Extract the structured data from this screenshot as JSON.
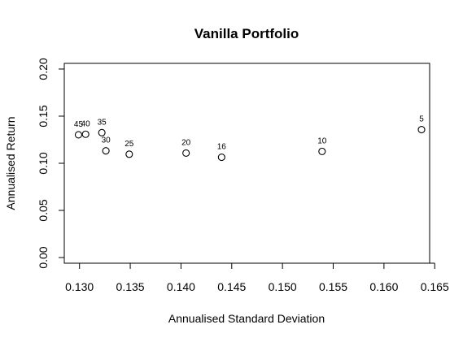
{
  "chart_data": {
    "type": "scatter",
    "title": "Vanilla Portfolio",
    "xlabel": "Annualised Standard Deviation",
    "ylabel": "Annualised Return",
    "xlim": [
      0.1285,
      0.1645
    ],
    "ylim": [
      -0.006,
      0.206
    ],
    "x_ticks": [
      0.13,
      0.135,
      0.14,
      0.145,
      0.15,
      0.155,
      0.16,
      0.165
    ],
    "x_tick_labels": [
      "0.130",
      "0.135",
      "0.140",
      "0.145",
      "0.150",
      "0.155",
      "0.160",
      "0.165"
    ],
    "y_ticks": [
      0.0,
      0.05,
      0.1,
      0.15,
      0.2
    ],
    "y_tick_labels": [
      "0.00",
      "0.05",
      "0.10",
      "0.15",
      "0.20"
    ],
    "grid": false,
    "points": [
      {
        "label": "45",
        "x": 0.1299,
        "y": 0.1302
      },
      {
        "label": "40",
        "x": 0.1306,
        "y": 0.1308
      },
      {
        "label": "35",
        "x": 0.1322,
        "y": 0.1325
      },
      {
        "label": "30",
        "x": 0.1326,
        "y": 0.1132
      },
      {
        "label": "25",
        "x": 0.1349,
        "y": 0.1096
      },
      {
        "label": "20",
        "x": 0.1405,
        "y": 0.1108
      },
      {
        "label": "16",
        "x": 0.144,
        "y": 0.1064
      },
      {
        "label": "10",
        "x": 0.1539,
        "y": 0.1126
      },
      {
        "label": "5",
        "x": 0.1637,
        "y": 0.1357
      }
    ]
  }
}
